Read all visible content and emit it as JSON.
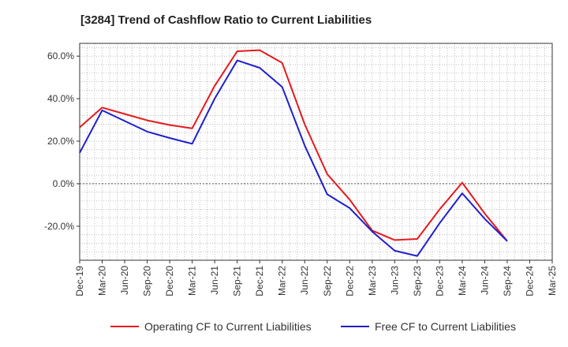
{
  "chart_data": {
    "type": "line",
    "title": "[3284]  Trend of Cashflow Ratio to Current Liabilities",
    "xlabel": "",
    "ylabel": "",
    "x": [
      "Dec-19",
      "Mar-20",
      "Jun-20",
      "Sep-20",
      "Dec-20",
      "Mar-21",
      "Jun-21",
      "Sep-21",
      "Dec-21",
      "Mar-22",
      "Jun-22",
      "Sep-22",
      "Dec-22",
      "Mar-23",
      "Jun-23",
      "Sep-23",
      "Dec-23",
      "Mar-24",
      "Jun-24",
      "Sep-24",
      "Dec-24",
      "Mar-25"
    ],
    "y_ticks": [
      {
        "value": 60,
        "label": "60.0%"
      },
      {
        "value": 40,
        "label": "40.0%"
      },
      {
        "value": 20,
        "label": "20.0%"
      },
      {
        "value": 0,
        "label": "0.0%"
      },
      {
        "value": -20,
        "label": "-20.0%"
      }
    ],
    "ylim": [
      -36,
      66
    ],
    "grid": true,
    "legend_position": "bottom",
    "series": [
      {
        "name": "Operating CF to Current Liabilities",
        "color": "#e41a1c",
        "values": [
          26.5,
          35.8,
          32.8,
          29.8,
          27.6,
          26.0,
          46.0,
          62.3,
          62.8,
          56.8,
          28.0,
          4.5,
          -7.5,
          -22.0,
          -26.5,
          -26.0,
          -12.0,
          0.5,
          -14.0,
          -27.0,
          null,
          null
        ]
      },
      {
        "name": "Free CF to Current Liabilities",
        "color": "#1f1fcc",
        "values": [
          14.5,
          34.5,
          29.5,
          24.5,
          21.5,
          18.8,
          40.0,
          58.0,
          54.5,
          45.5,
          18.0,
          -5.0,
          -11.5,
          -22.5,
          -31.5,
          -34.0,
          -18.5,
          -4.5,
          -16.5,
          -27.0,
          null,
          null
        ]
      }
    ]
  }
}
